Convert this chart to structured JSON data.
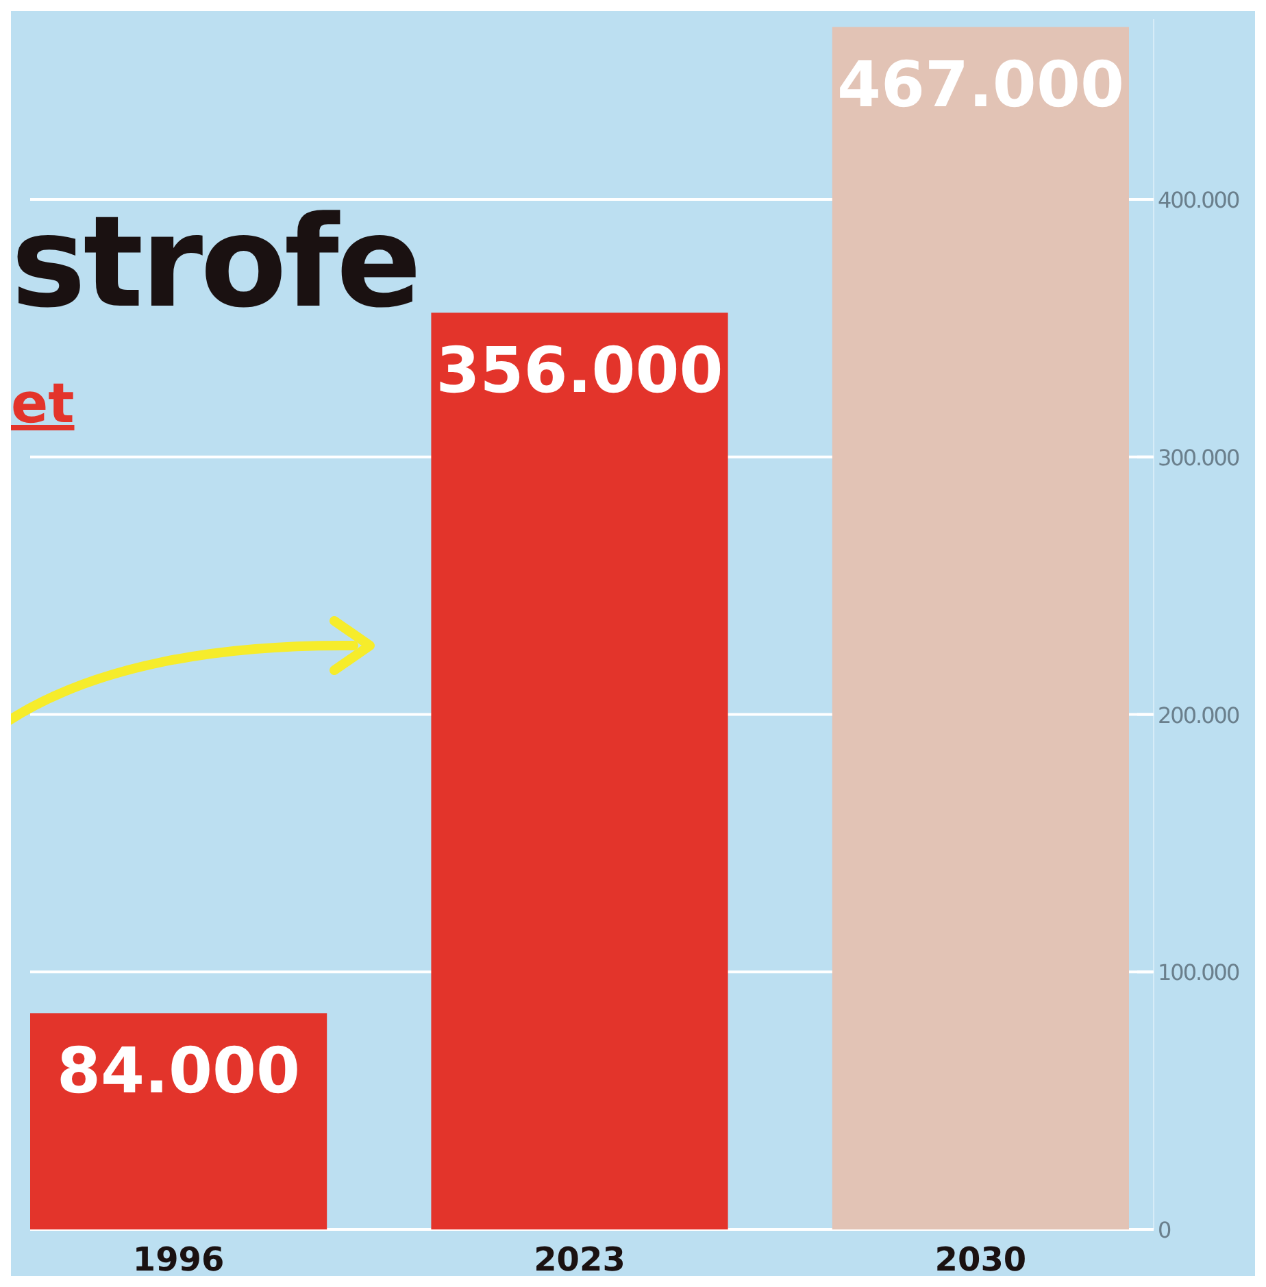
{
  "chart_data": {
    "type": "bar",
    "title": "strofe",
    "subtitle": "et",
    "categories": [
      "1996",
      "2023",
      "2030"
    ],
    "values": [
      84000,
      356000,
      467000
    ],
    "colors": [
      "#e3342b",
      "#e3342b",
      "#e2c3b5"
    ],
    "value_labels": [
      "84.000",
      "356.000",
      "467.000"
    ],
    "ylim": [
      0,
      470000
    ],
    "yticks": [
      0,
      {
        "value": 100000,
        "label": "100.000"
      },
      {
        "value": 200000,
        "label": "200.000"
      },
      {
        "value": 300000,
        "label": "300.000"
      },
      {
        "value": 400000,
        "label": "400.000"
      }
    ],
    "grid": "y"
  }
}
